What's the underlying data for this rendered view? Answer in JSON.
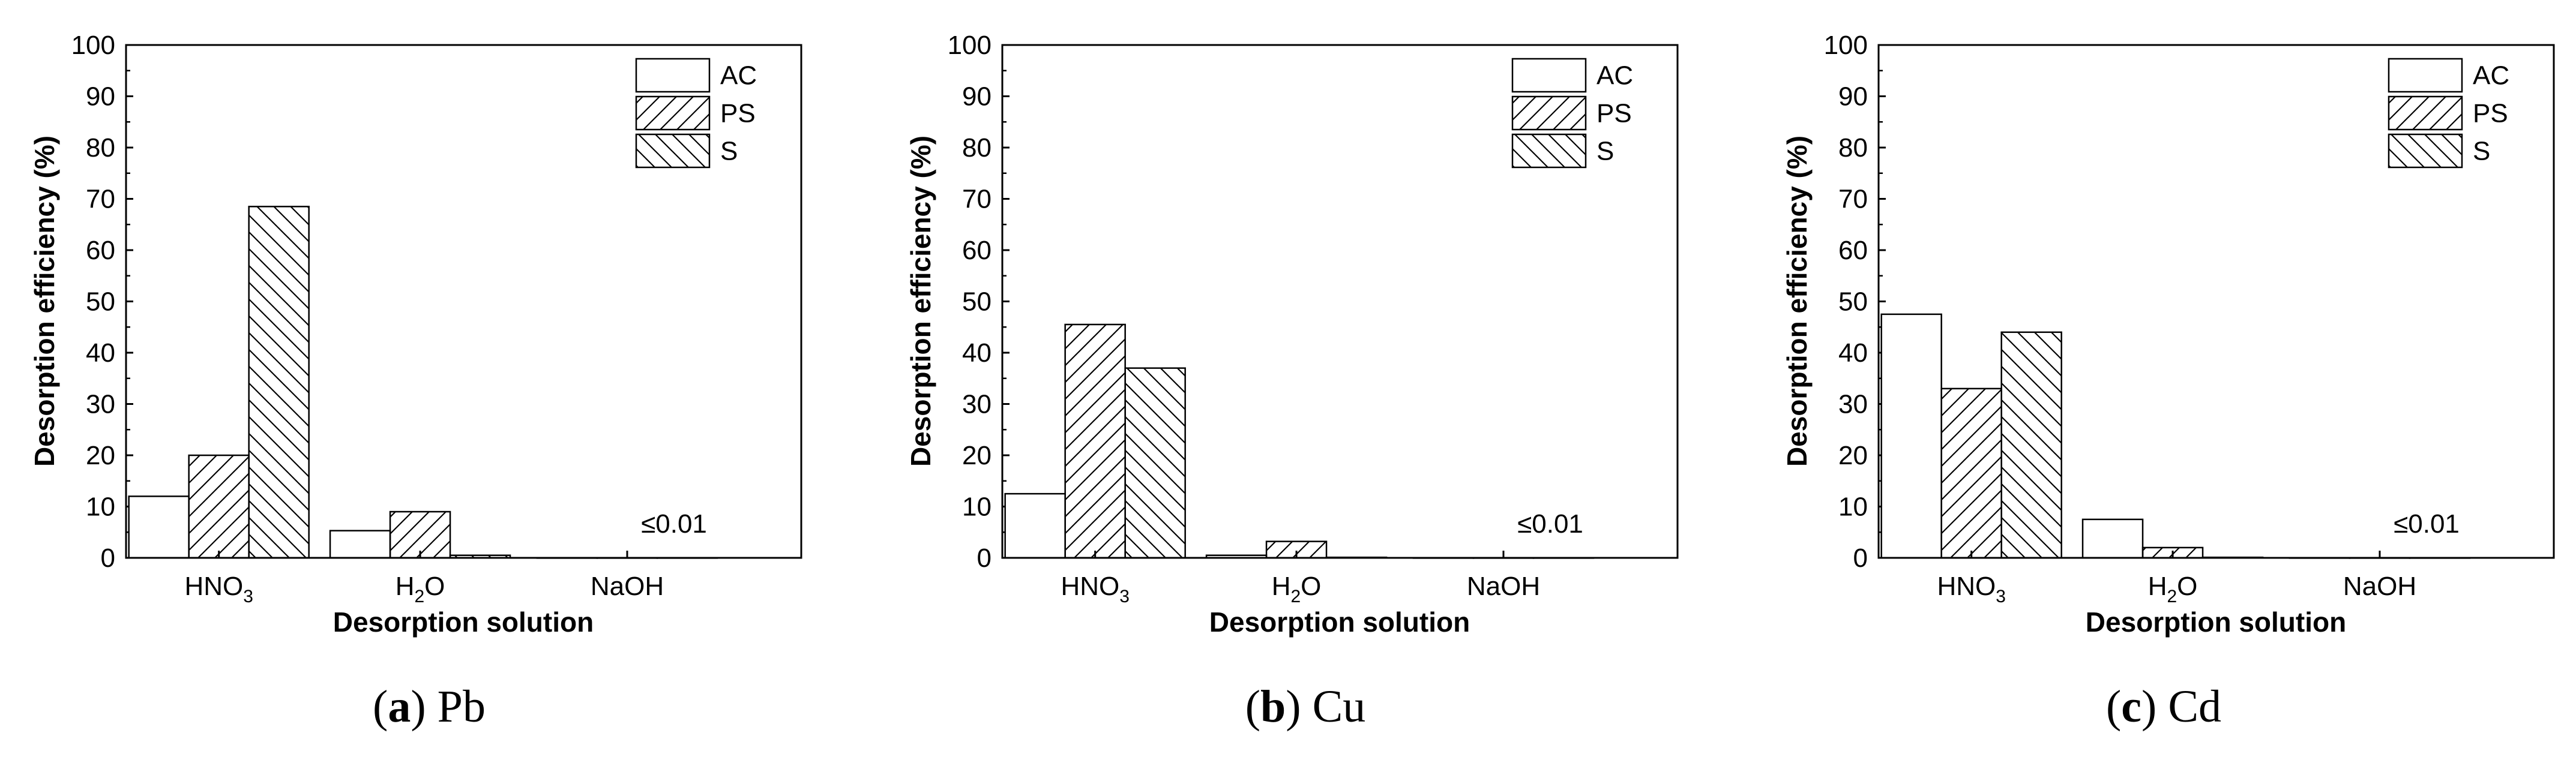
{
  "chart_data": [
    {
      "type": "bar",
      "caption_letter": "a",
      "caption_text": "Pb",
      "xlabel": "Desorption solution",
      "ylabel": "Desorption efficiency (%)",
      "ylim": [
        0,
        100
      ],
      "yticks": [
        "0",
        "10",
        "20",
        "30",
        "40",
        "50",
        "60",
        "70",
        "80",
        "90",
        "100"
      ],
      "categories": [
        {
          "base": "HNO",
          "sub": "3",
          "tail": ""
        },
        {
          "base": "H",
          "sub": "2",
          "tail": "O"
        },
        {
          "base": "NaOH",
          "sub": "",
          "tail": ""
        }
      ],
      "series": [
        {
          "name": "AC",
          "pattern": "none",
          "values": [
            12,
            5.3,
            0.01
          ]
        },
        {
          "name": "PS",
          "pattern": "diag-right",
          "values": [
            20,
            9,
            0.01
          ]
        },
        {
          "name": "S",
          "pattern": "diag-left",
          "values": [
            68.5,
            0.5,
            0.01
          ]
        }
      ],
      "annotation": "≤0.01",
      "legend_position": "top-right",
      "grid": false
    },
    {
      "type": "bar",
      "caption_letter": "b",
      "caption_text": "Cu",
      "xlabel": "Desorption solution",
      "ylabel": "Desorption efficiency (%)",
      "ylim": [
        0,
        100
      ],
      "yticks": [
        "0",
        "10",
        "20",
        "30",
        "40",
        "50",
        "60",
        "70",
        "80",
        "90",
        "100"
      ],
      "categories": [
        {
          "base": "HNO",
          "sub": "3",
          "tail": ""
        },
        {
          "base": "H",
          "sub": "2",
          "tail": "O"
        },
        {
          "base": "NaOH",
          "sub": "",
          "tail": ""
        }
      ],
      "series": [
        {
          "name": "AC",
          "pattern": "none",
          "values": [
            12.5,
            0.5,
            0.01
          ]
        },
        {
          "name": "PS",
          "pattern": "diag-right",
          "values": [
            45.5,
            3.2,
            0.01
          ]
        },
        {
          "name": "S",
          "pattern": "diag-left",
          "values": [
            37,
            0.1,
            0.01
          ]
        }
      ],
      "annotation": "≤0.01",
      "legend_position": "top-right",
      "grid": false
    },
    {
      "type": "bar",
      "caption_letter": "c",
      "caption_text": "Cd",
      "xlabel": "Desorption solution",
      "ylabel": "Desorption efficiency (%)",
      "ylim": [
        0,
        100
      ],
      "yticks": [
        "0",
        "10",
        "20",
        "30",
        "40",
        "50",
        "60",
        "70",
        "80",
        "90",
        "100"
      ],
      "categories": [
        {
          "base": "HNO",
          "sub": "3",
          "tail": ""
        },
        {
          "base": "H",
          "sub": "2",
          "tail": "O"
        },
        {
          "base": "NaOH",
          "sub": "",
          "tail": ""
        }
      ],
      "series": [
        {
          "name": "AC",
          "pattern": "none",
          "values": [
            47.5,
            7.5,
            0.01
          ]
        },
        {
          "name": "PS",
          "pattern": "diag-right",
          "values": [
            33,
            2,
            0.01
          ]
        },
        {
          "name": "S",
          "pattern": "diag-left",
          "values": [
            44,
            0.1,
            0.01
          ]
        }
      ],
      "annotation": "≤0.01",
      "legend_position": "top-right",
      "grid": false
    }
  ]
}
